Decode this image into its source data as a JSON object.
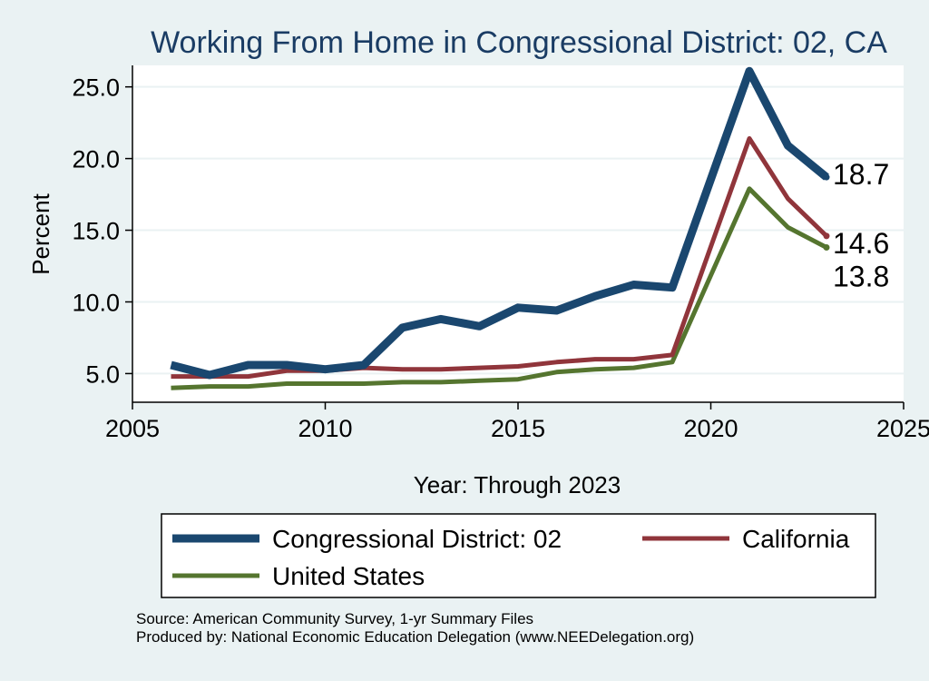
{
  "chart_data": {
    "type": "line",
    "title": "Working From Home in Congressional District: 02, CA",
    "xlabel": "Year: Through 2023",
    "ylabel": "Percent",
    "xlim": [
      2005,
      2025
    ],
    "ylim": [
      3.0,
      26.5
    ],
    "xticks": [
      2005,
      2010,
      2015,
      2020,
      2025
    ],
    "yticks": [
      5.0,
      10.0,
      15.0,
      20.0,
      25.0
    ],
    "xtick_labels": [
      "2005",
      "2010",
      "2015",
      "2020",
      "2025"
    ],
    "ytick_labels": [
      "5.0",
      "10.0",
      "15.0",
      "20.0",
      "25.0"
    ],
    "grid": "horizontal",
    "legend_position": "bottom",
    "x": [
      2006,
      2007,
      2008,
      2009,
      2010,
      2011,
      2012,
      2013,
      2014,
      2015,
      2016,
      2017,
      2018,
      2019,
      2021,
      2022,
      2023
    ],
    "series": [
      {
        "name": "Congressional District: 02",
        "color": "#1a476f",
        "values": [
          5.6,
          4.9,
          5.6,
          5.6,
          5.3,
          5.6,
          8.2,
          8.8,
          8.3,
          9.6,
          9.4,
          10.4,
          11.2,
          11.0,
          26.1,
          20.9,
          18.7
        ],
        "end_label": "18.7"
      },
      {
        "name": "California",
        "color": "#90353b",
        "values": [
          4.8,
          4.8,
          4.8,
          5.2,
          5.2,
          5.4,
          5.3,
          5.3,
          5.4,
          5.5,
          5.8,
          6.0,
          6.0,
          6.3,
          21.4,
          17.2,
          14.6
        ],
        "end_label": "14.6"
      },
      {
        "name": "United States",
        "color": "#55752f",
        "values": [
          4.0,
          4.1,
          4.1,
          4.3,
          4.3,
          4.3,
          4.4,
          4.4,
          4.5,
          4.6,
          5.1,
          5.3,
          5.4,
          5.8,
          17.9,
          15.2,
          13.8
        ],
        "end_label": "13.8"
      }
    ]
  },
  "footer": {
    "source": "Source: American Community Survey, 1-yr Summary Files",
    "producer": "Produced by: National Economic Education Delegation (www.NEEDelegation.org)"
  }
}
